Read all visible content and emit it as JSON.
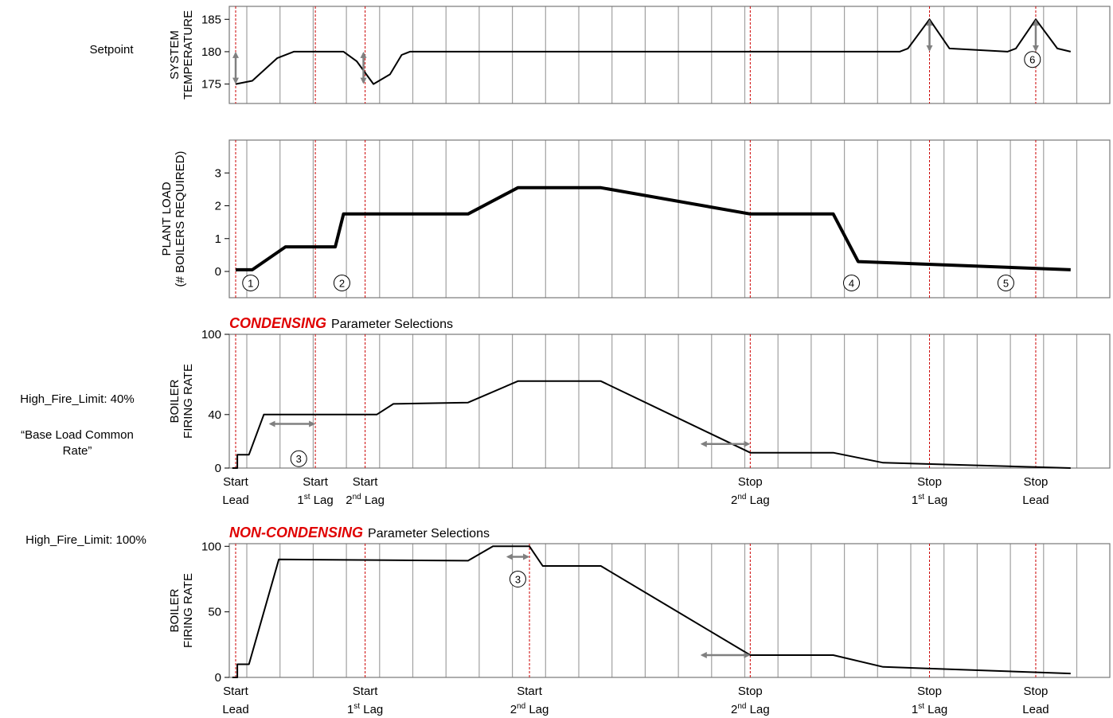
{
  "chart_data": [
    {
      "type": "line",
      "ylabel": [
        "SYSTEM",
        "TEMPERATURE"
      ],
      "ylim": [
        172,
        187
      ],
      "yticks": [
        175,
        180,
        185
      ],
      "side_label": "Setpoint",
      "grid": true,
      "series": [
        {
          "points": [
            [
              0,
              175
            ],
            [
              1,
              175.5
            ],
            [
              2.5,
              179
            ],
            [
              3.5,
              180
            ],
            [
              6.5,
              180
            ],
            [
              7.3,
              178.5
            ],
            [
              8.3,
              175
            ],
            [
              9.3,
              176.5
            ],
            [
              10,
              179.5
            ],
            [
              10.5,
              180
            ],
            [
              40,
              180
            ],
            [
              40.5,
              180.5
            ],
            [
              41.8,
              185
            ],
            [
              43,
              180.5
            ],
            [
              46.5,
              180
            ],
            [
              47,
              180.5
            ],
            [
              48.2,
              185
            ],
            [
              49.5,
              180.5
            ],
            [
              50.3,
              180
            ]
          ]
        }
      ],
      "arrows": [
        {
          "x": 0,
          "y1": 175,
          "y2": 180
        },
        {
          "x": 7.7,
          "y1": 175,
          "y2": 180
        },
        {
          "x": 41.8,
          "y1": 180,
          "y2": 185
        },
        {
          "x": 48.2,
          "y1": 180,
          "y2": 185
        }
      ],
      "markers": [
        {
          "label": "6",
          "x": 48,
          "y": 178.8
        }
      ]
    },
    {
      "type": "line",
      "ylabel": [
        "PLANT LOAD",
        "(# BOILERS REQUIRED)"
      ],
      "ylim": [
        -0.8,
        4
      ],
      "yticks": [
        0,
        1,
        2,
        3
      ],
      "grid": true,
      "series": [
        {
          "points": [
            [
              0,
              0.05
            ],
            [
              1,
              0.05
            ],
            [
              3,
              0.75
            ],
            [
              6,
              0.75
            ],
            [
              6.5,
              1.75
            ],
            [
              14,
              1.75
            ],
            [
              17,
              2.55
            ],
            [
              22,
              2.55
            ],
            [
              31,
              1.75
            ],
            [
              36,
              1.75
            ],
            [
              37.5,
              0.3
            ],
            [
              50.3,
              0.05
            ]
          ]
        }
      ],
      "markers": [
        {
          "label": "1",
          "x": 0.9,
          "y": -0.35
        },
        {
          "label": "2",
          "x": 6.4,
          "y": -0.35
        },
        {
          "label": "4",
          "x": 37.1,
          "y": -0.35
        },
        {
          "label": "5",
          "x": 46.4,
          "y": -0.35
        }
      ]
    },
    {
      "type": "line",
      "heading": {
        "red": "CONDENSING",
        "black": "Parameter Selections"
      },
      "ylabel": [
        "BOILER",
        "FIRING RATE"
      ],
      "ylim": [
        0,
        100
      ],
      "yticks": [
        0,
        40,
        100
      ],
      "side_labels": [
        "High_Fire_Limit: 40%",
        "“Base Load Common",
        "Rate”"
      ],
      "grid": true,
      "series": [
        {
          "points": [
            [
              -0.2,
              0
            ],
            [
              0.1,
              0
            ],
            [
              0.1,
              10
            ],
            [
              0.8,
              10
            ],
            [
              1.7,
              40
            ],
            [
              8.5,
              40
            ],
            [
              9.5,
              48
            ],
            [
              14,
              49
            ],
            [
              17,
              65
            ],
            [
              22,
              65
            ],
            [
              31,
              11.5
            ],
            [
              36,
              11.5
            ],
            [
              39,
              4
            ],
            [
              50.3,
              0
            ]
          ]
        }
      ],
      "arrows_h": [
        {
          "y": 33,
          "x1": 2,
          "x2": 4.8
        },
        {
          "y": 18,
          "x1": 28,
          "x2": 31
        }
      ],
      "markers": [
        {
          "label": "3",
          "x": 3.8,
          "y": 7
        }
      ],
      "events": [
        {
          "x": 0,
          "line1": "Start",
          "line2": "Lead",
          "sup": ""
        },
        {
          "x": 4.8,
          "line1": "Start",
          "line2_pre": "1",
          "sup": "st",
          "line2": " Lag"
        },
        {
          "x": 7.8,
          "line1": "Start",
          "line2_pre": "2",
          "sup": "nd",
          "line2": " Lag"
        },
        {
          "x": 31,
          "line1": "Stop",
          "line2_pre": "2",
          "sup": "nd",
          "line2": " Lag"
        },
        {
          "x": 41.8,
          "line1": "Stop",
          "line2_pre": "1",
          "sup": "st",
          "line2": " Lag"
        },
        {
          "x": 48.2,
          "line1": "Stop",
          "line2": "Lead",
          "sup": ""
        }
      ]
    },
    {
      "type": "line",
      "heading": {
        "red": "NON-CONDENSING",
        "black": "Parameter Selections"
      },
      "ylabel": [
        "BOILER",
        "FIRING RATE"
      ],
      "ylim": [
        0,
        102
      ],
      "yticks": [
        0,
        50,
        100
      ],
      "side_labels": [
        "High_Fire_Limit: 100%"
      ],
      "grid": true,
      "series": [
        {
          "points": [
            [
              -0.2,
              0
            ],
            [
              0.1,
              0
            ],
            [
              0.1,
              10
            ],
            [
              0.8,
              10
            ],
            [
              2.6,
              90
            ],
            [
              14,
              89
            ],
            [
              15.5,
              100
            ],
            [
              17.7,
              100
            ],
            [
              18.5,
              85
            ],
            [
              22,
              85
            ],
            [
              31,
              17
            ],
            [
              36,
              17
            ],
            [
              39,
              8
            ],
            [
              50.3,
              3
            ]
          ]
        }
      ],
      "arrows_h": [
        {
          "y": 92,
          "x1": 16.3,
          "x2": 17.7
        },
        {
          "y": 17,
          "x1": 28,
          "x2": 31
        }
      ],
      "markers": [
        {
          "label": "3",
          "x": 17,
          "y": 75
        }
      ],
      "events": [
        {
          "x": 0,
          "line1": "Start",
          "line2": "Lead",
          "sup": ""
        },
        {
          "x": 7.8,
          "line1": "Start",
          "line2_pre": "1",
          "sup": "st",
          "line2": " Lag"
        },
        {
          "x": 17.7,
          "line1": "Start",
          "line2_pre": "2",
          "sup": "nd",
          "line2": " Lag"
        },
        {
          "x": 31,
          "line1": "Stop",
          "line2_pre": "2",
          "sup": "nd",
          "line2": " Lag"
        },
        {
          "x": 41.8,
          "line1": "Stop",
          "line2_pre": "1",
          "sup": "st",
          "line2": " Lag"
        },
        {
          "x": 48.2,
          "line1": "Stop",
          "line2": "Lead",
          "sup": ""
        }
      ]
    }
  ],
  "colors": {
    "line": "#000000",
    "grid": "#a0a0a0",
    "event": "#cc0000",
    "arrow": "#808080",
    "heading": "#e00000"
  }
}
